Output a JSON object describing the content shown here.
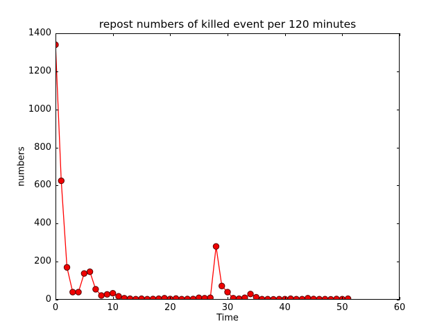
{
  "chart_data": {
    "type": "line",
    "title": "repost numbers of killed event per 120 minutes",
    "xlabel": "Time",
    "ylabel": "numbers",
    "xlim": [
      0,
      60
    ],
    "ylim": [
      0,
      1400
    ],
    "xticks": [
      0,
      10,
      20,
      30,
      40,
      50,
      60
    ],
    "yticks": [
      0,
      200,
      400,
      600,
      800,
      1000,
      1200,
      1400
    ],
    "grid": false,
    "legend": null,
    "style": {
      "line_color": "#ff0000",
      "marker": "o",
      "marker_face_color": "#f00000",
      "marker_edge_color": "#550000",
      "background": "#ffffff",
      "spine_color": "#000000"
    },
    "series": [
      {
        "name": "repost numbers",
        "x": [
          0,
          1,
          2,
          3,
          4,
          5,
          6,
          7,
          8,
          9,
          10,
          11,
          12,
          13,
          14,
          15,
          16,
          17,
          18,
          19,
          20,
          21,
          22,
          23,
          24,
          25,
          26,
          27,
          28,
          29,
          30,
          31,
          32,
          33,
          34,
          35,
          36,
          37,
          38,
          39,
          40,
          41,
          42,
          43,
          44,
          45,
          46,
          47,
          48,
          49,
          50,
          51
        ],
        "values": [
          1340,
          625,
          170,
          40,
          40,
          138,
          147,
          55,
          22,
          28,
          34,
          18,
          8,
          5,
          3,
          5,
          3,
          4,
          5,
          8,
          4,
          6,
          3,
          4,
          4,
          10,
          8,
          10,
          280,
          72,
          40,
          8,
          5,
          10,
          30,
          13,
          3,
          3,
          2,
          3,
          3,
          5,
          3,
          3,
          8,
          4,
          3,
          3,
          2,
          4,
          3,
          5
        ]
      }
    ]
  }
}
